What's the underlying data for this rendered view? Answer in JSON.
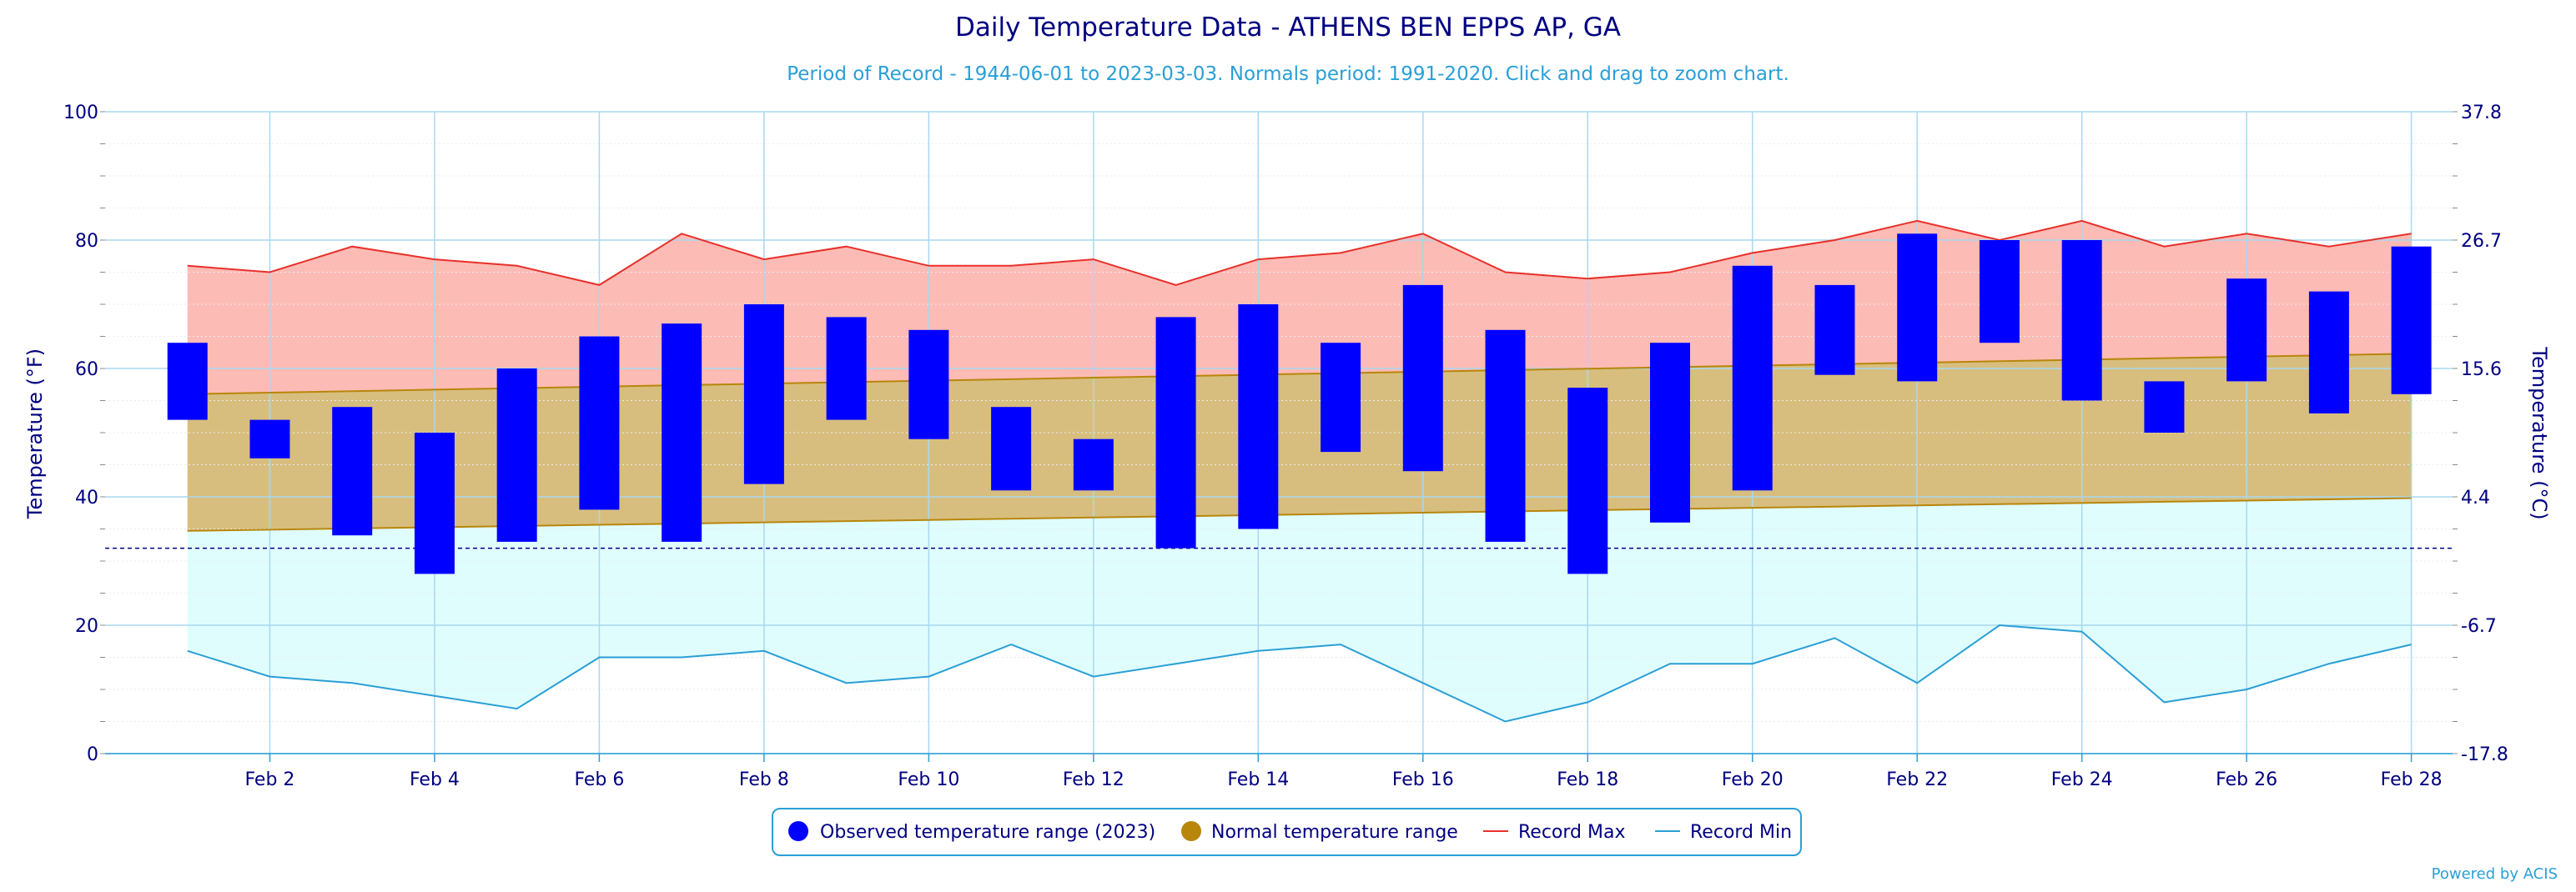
{
  "chart_data": {
    "type": "bar",
    "title": "Daily Temperature Data - ATHENS BEN EPPS AP, GA",
    "subtitle": "Period of Record - 1944-06-01 to 2023-03-03. Normals period: 1991-2020. Click and drag to zoom chart.",
    "ylabel_left": "Temperature (°F)",
    "ylabel_right": "Temperature (°C)",
    "ylim": [
      0,
      100
    ],
    "yticks_left": [
      "0",
      "20",
      "40",
      "60",
      "80",
      "100"
    ],
    "yticks_right": [
      "-17.8",
      "-6.7",
      "4.4",
      "15.6",
      "26.7",
      "37.8"
    ],
    "x_ticks": [
      "Feb 2",
      "Feb 4",
      "Feb 6",
      "Feb 8",
      "Feb 10",
      "Feb 12",
      "Feb 14",
      "Feb 16",
      "Feb 18",
      "Feb 20",
      "Feb 22",
      "Feb 24",
      "Feb 26",
      "Feb 28"
    ],
    "days": [
      1,
      2,
      3,
      4,
      5,
      6,
      7,
      8,
      9,
      10,
      11,
      12,
      13,
      14,
      15,
      16,
      17,
      18,
      19,
      20,
      21,
      22,
      23,
      24,
      25,
      26,
      27,
      28
    ],
    "freezing_line": 32,
    "grid": true,
    "legend_position": "bottom-center",
    "series": [
      {
        "name": "Observed temperature range (2023)",
        "color": "#0000ff",
        "low": [
          52,
          46,
          34,
          28,
          33,
          38,
          33,
          42,
          52,
          49,
          41,
          41,
          32,
          35,
          47,
          44,
          33,
          28,
          36,
          41,
          59,
          58,
          64,
          55,
          50,
          58,
          53,
          56
        ],
        "high": [
          64,
          52,
          54,
          50,
          60,
          65,
          67,
          70,
          68,
          66,
          54,
          49,
          68,
          70,
          64,
          73,
          66,
          57,
          64,
          76,
          73,
          81,
          80,
          80,
          58,
          74,
          72,
          79
        ]
      },
      {
        "name": "Normal temperature range",
        "color": "#b8860b",
        "low_start": 34.7,
        "low_end": 39.8,
        "high_start": 56.0,
        "high_end": 62.3
      },
      {
        "name": "Record Max",
        "color": "#e8302a",
        "values": [
          76,
          75,
          79,
          77,
          76,
          73,
          81,
          77,
          79,
          76,
          76,
          77,
          73,
          77,
          78,
          81,
          75,
          74,
          75,
          78,
          80,
          83,
          80,
          83,
          79,
          81,
          79,
          81
        ]
      },
      {
        "name": "Record Min",
        "color": "#2a9fd6",
        "values": [
          16,
          12,
          11,
          9,
          7,
          15,
          15,
          16,
          11,
          12,
          17,
          12,
          14,
          16,
          17,
          11,
          5,
          8,
          14,
          14,
          18,
          11,
          20,
          19,
          8,
          10,
          14,
          17
        ]
      }
    ],
    "credits": "Powered by ACIS"
  }
}
